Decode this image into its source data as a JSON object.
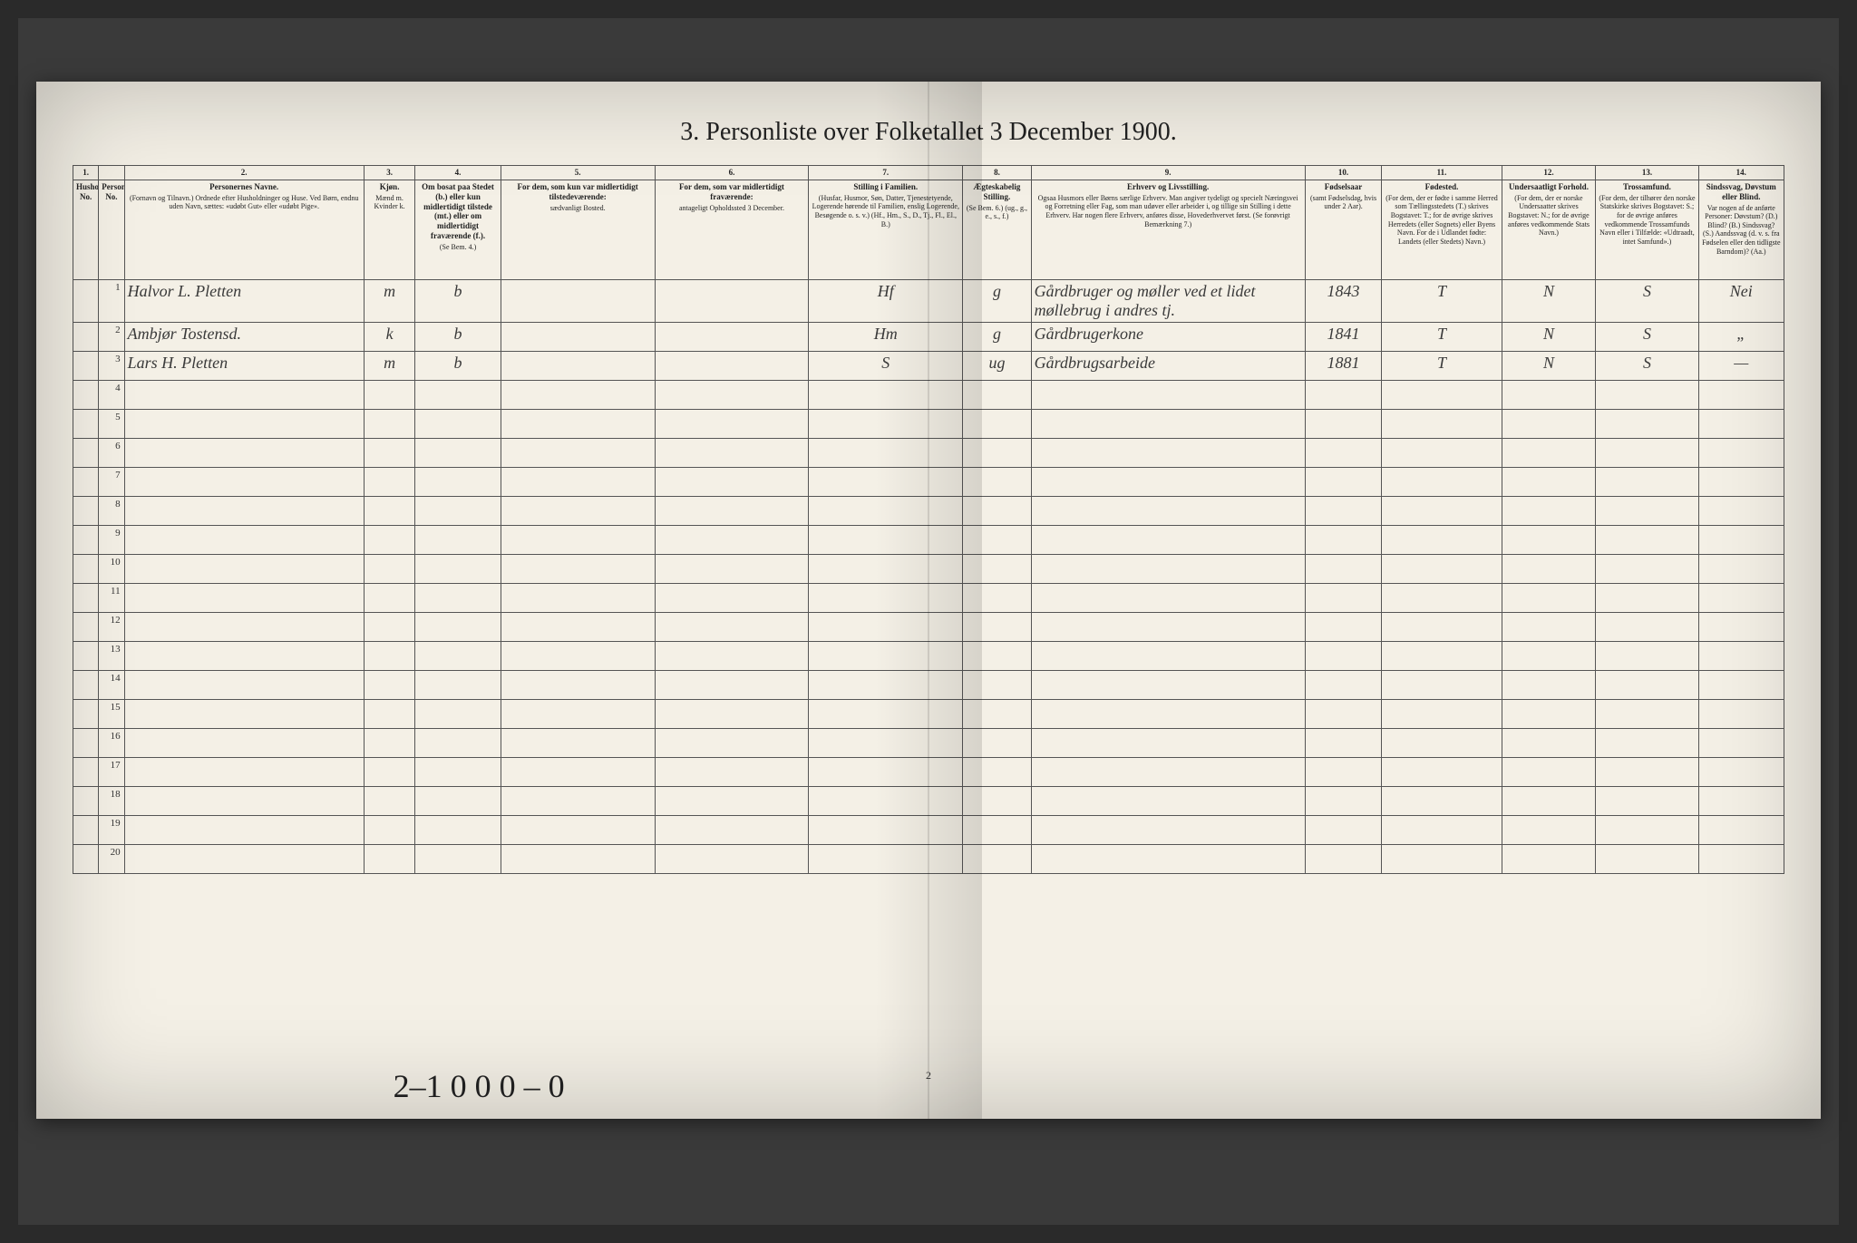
{
  "title": "3. Personliste over Folketallet 3 December 1900.",
  "page_number": "2",
  "bottom_annotation": "2–1 0 0 0 – 0",
  "colnums": [
    "1.",
    "",
    "2.",
    "3.",
    "4.",
    "5.",
    "6.",
    "7.",
    "8.",
    "9.",
    "10.",
    "11.",
    "12.",
    "13.",
    "14."
  ],
  "headers": [
    {
      "main": "Husholdningernes No.",
      "sub": ""
    },
    {
      "main": "Personernes No.",
      "sub": ""
    },
    {
      "main": "Personernes Navne.",
      "sub": "(Fornavn og Tilnavn.) Ordnede efter Husholdninger og Huse. Ved Børn, endnu uden Navn, sættes: «udøbt Gut» eller «udøbt Pige»."
    },
    {
      "main": "Kjøn.",
      "sub": "Mænd m. Kvinder k."
    },
    {
      "main": "Om bosat paa Stedet (b.) eller kun midlertidigt tilstede (mt.) eller om midlertidigt fraværende (f.).",
      "sub": "(Se Bem. 4.)"
    },
    {
      "main": "For dem, som kun var midlertidigt tilstedeværende:",
      "sub": "sædvanligt Bosted."
    },
    {
      "main": "For dem, som var midlertidigt fraværende:",
      "sub": "antageligt Opholdssted 3 December."
    },
    {
      "main": "Stilling i Familien.",
      "sub": "(Husfar, Husmor, Søn, Datter, Tjenestetyende, Logerende hørende til Familien, enslig Logerende, Besøgende o. s. v.) (Hf., Hm., S., D., Tj., Fl., El., B.)"
    },
    {
      "main": "Ægteskabelig Stilling.",
      "sub": "(Se Bem. 6.) (ug., g., e., s., f.)"
    },
    {
      "main": "Erhverv og Livsstilling.",
      "sub": "Ogsaa Husmors eller Børns særlige Erhverv. Man angiver tydeligt og specielt Næringsvei og Forretning eller Fag, som man udøver eller arbeider i, og tillige sin Stilling i dette Erhverv. Har nogen flere Erhverv, anføres disse, Hovederhvervet først. (Se forøvrigt Bemærkning 7.)"
    },
    {
      "main": "Fødselsaar",
      "sub": "(samt Fødselsdag, hvis under 2 Aar)."
    },
    {
      "main": "Fødested.",
      "sub": "(For dem, der er fødte i samme Herred som Tællingsstedets (T.) skrives Bogstavet: T.; for de øvrige skrives Herredets (eller Sognets) eller Byens Navn. For de i Udlandet fødte: Landets (eller Stedets) Navn.)"
    },
    {
      "main": "Undersaatligt Forhold.",
      "sub": "(For dem, der er norske Undersaatter skrives Bogstavet: N.; for de øvrige anføres vedkommende Stats Navn.)"
    },
    {
      "main": "Trossamfund.",
      "sub": "(For dem, der tilhører den norske Statskirke skrives Bogstavet: S.; for de øvrige anføres vedkommende Trossamfunds Navn eller i Tilfælde: «Udtraadt, intet Samfund».)"
    },
    {
      "main": "Sindssvag, Døvstum eller Blind.",
      "sub": "Var nogen af de anførte Personer: Døvstum? (D.) Blind? (B.) Sindssvag? (S.) Aandssvag (d. v. s. fra Fødselen eller den tidligste Barndom)? (Aa.)"
    }
  ],
  "rows": [
    {
      "n": "1",
      "name": "Halvor L. Pletten",
      "sex": "m",
      "res": "b",
      "temp": "",
      "absent": "",
      "fam": "Hf",
      "mar": "g",
      "occ": "Gårdbruger og møller ved et lidet møllebrug i andres tj.",
      "year": "1843",
      "birthplace": "T",
      "nat": "N",
      "faith": "S",
      "dis": "Nei"
    },
    {
      "n": "2",
      "name": "Ambjør Tostensd.",
      "sex": "k",
      "res": "b",
      "temp": "",
      "absent": "",
      "fam": "Hm",
      "mar": "g",
      "occ": "Gårdbrugerkone",
      "year": "1841",
      "birthplace": "T",
      "nat": "N",
      "faith": "S",
      "dis": "„"
    },
    {
      "n": "3",
      "name": "Lars H. Pletten",
      "sex": "m",
      "res": "b",
      "temp": "",
      "absent": "",
      "fam": "S",
      "mar": "ug",
      "occ": "Gårdbrugsarbeide",
      "year": "1881",
      "birthplace": "T",
      "nat": "N",
      "faith": "S",
      "dis": "—"
    }
  ],
  "empty_row_count": 17,
  "colwidths": [
    "1.5%",
    "1.5%",
    "14%",
    "3%",
    "5%",
    "9%",
    "9%",
    "9%",
    "4%",
    "16%",
    "4.5%",
    "7%",
    "5.5%",
    "6%",
    "5%"
  ]
}
